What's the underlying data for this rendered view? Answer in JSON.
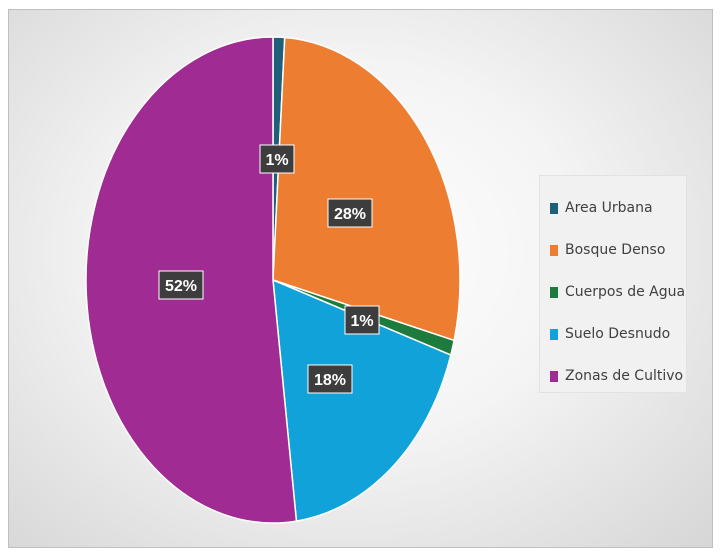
{
  "chart_data": {
    "type": "pie",
    "title": "",
    "categories": [
      "Area Urbana",
      "Bosque Denso",
      "Cuerpos de Agua",
      "Suelo Desnudo",
      "Zonas de Cultivo"
    ],
    "values": [
      1,
      28,
      1,
      18,
      52
    ],
    "data_labels": [
      "1%",
      "28%",
      "1%",
      "18%",
      "52%"
    ],
    "colors": [
      "#1f5f7a",
      "#ed7d31",
      "#1e7b3e",
      "#10a2d8",
      "#a02b93"
    ],
    "legend_position": "right",
    "start_angle": "top",
    "direction": "clockwise"
  },
  "legend": {
    "items": [
      {
        "label": "Area Urbana",
        "color": "#1f5f7a"
      },
      {
        "label": "Bosque Denso",
        "color": "#ed7d31"
      },
      {
        "label": "Cuerpos de Agua",
        "color": "#1e7b3e"
      },
      {
        "label": "Suelo Desnudo",
        "color": "#10a2d8"
      },
      {
        "label": "Zonas de Cultivo",
        "color": "#a02b93"
      }
    ]
  }
}
